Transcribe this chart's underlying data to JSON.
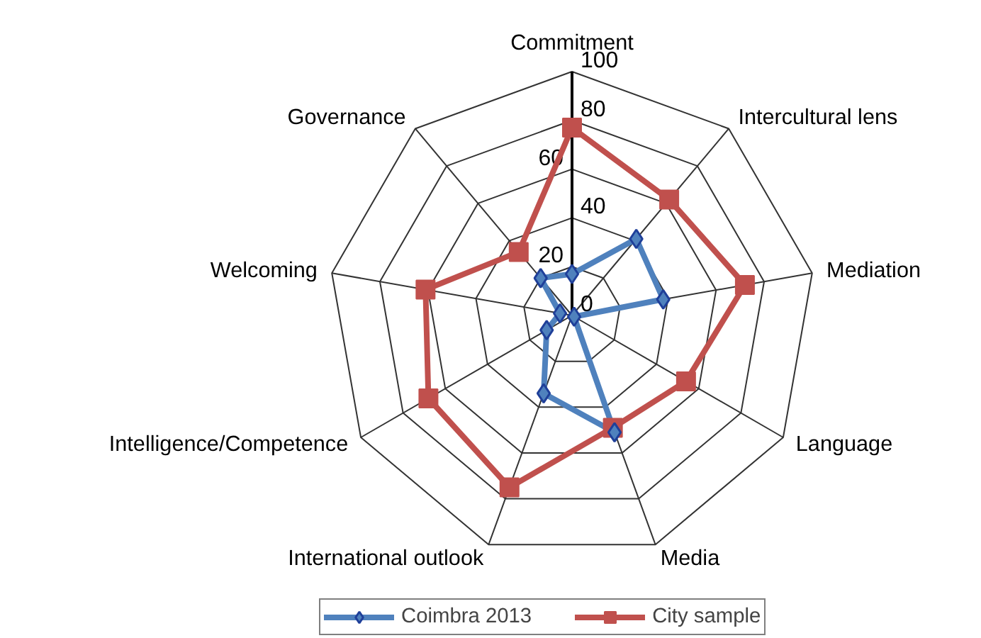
{
  "chart_data": {
    "type": "radar",
    "categories": [
      "Commitment",
      "Intercultural lens",
      "Mediation",
      "Language",
      "Media",
      "International outlook",
      "Intelligence/Competence",
      "Welcoming",
      "Governance"
    ],
    "series": [
      {
        "name": "Coimbra 2013",
        "color": "#4f81bd",
        "values": [
          17,
          41,
          38,
          1,
          51,
          34,
          12,
          5,
          20
        ],
        "marker": "diamond"
      },
      {
        "name": "City sample",
        "color": "#c0504d",
        "values": [
          77,
          62,
          72,
          54,
          49,
          75,
          68,
          61,
          34
        ],
        "marker": "square"
      }
    ],
    "ylim": [
      0,
      100
    ],
    "yticks": [
      0,
      20,
      40,
      60,
      80,
      100
    ],
    "grid": true,
    "legend": "bottom"
  }
}
